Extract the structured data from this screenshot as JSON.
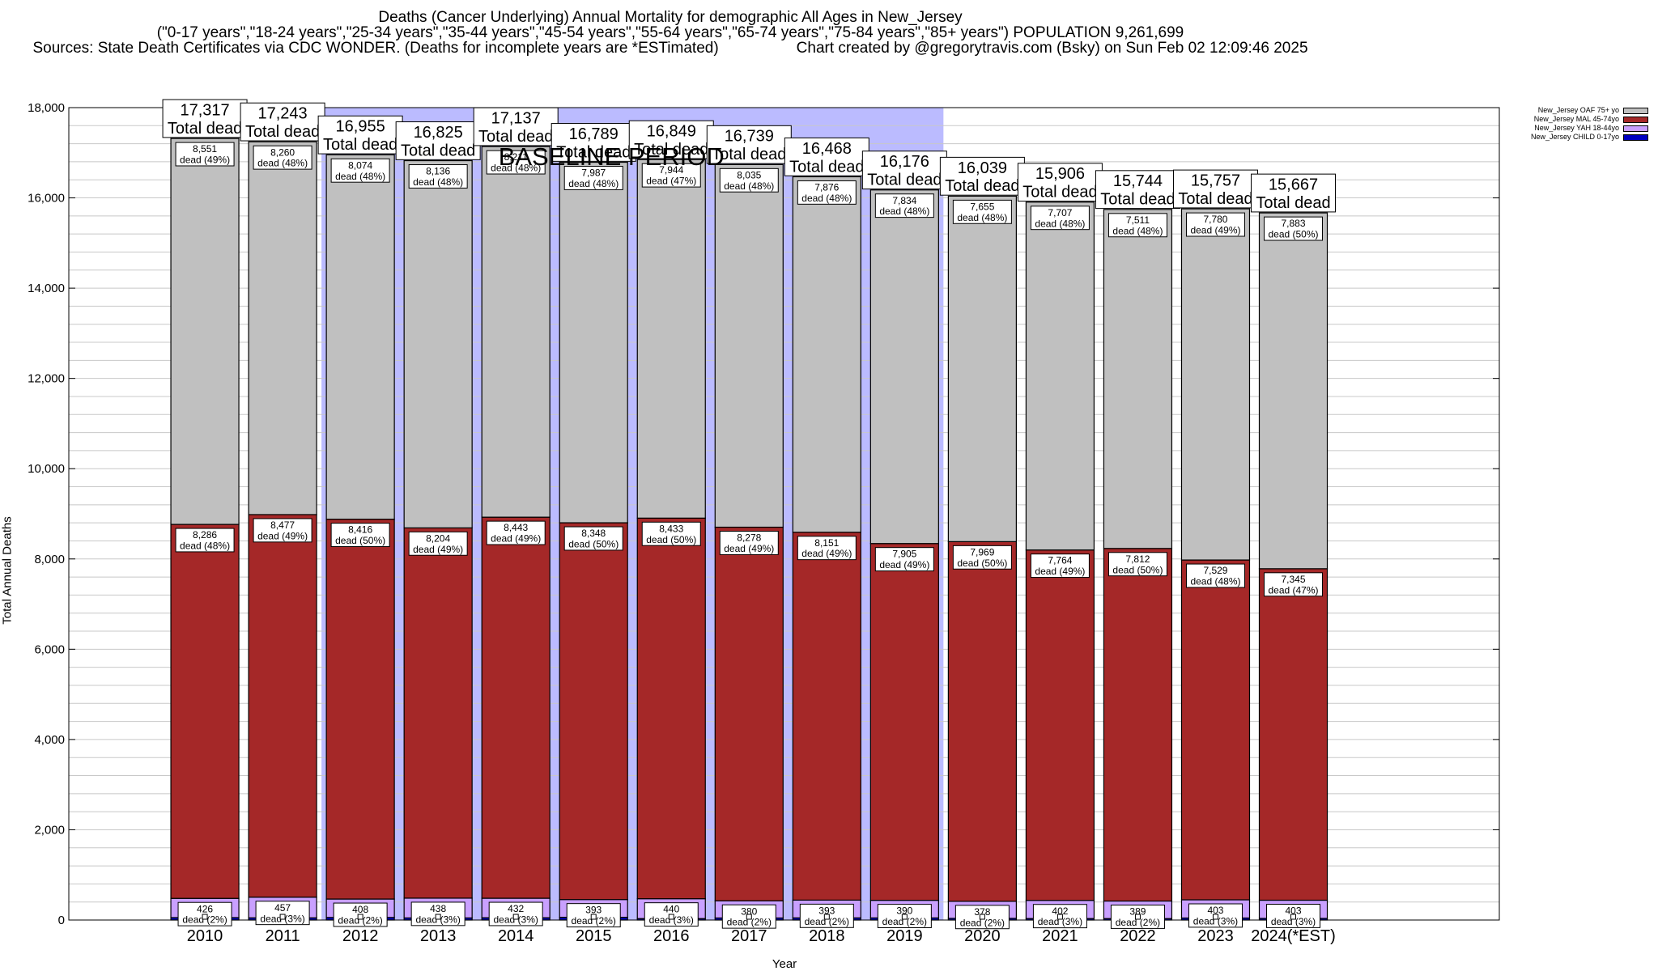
{
  "title": {
    "line1": "Deaths (Cancer Underlying) Annual Mortality for demographic All Ages in New_Jersey",
    "line2": "(\"0-17 years\",\"18-24 years\",\"25-34 years\",\"35-44 years\",\"45-54 years\",\"55-64 years\",\"65-74 years\",\"75-84 years\",\"85+ years\") POPULATION 9,261,699",
    "line3_left": "Sources: State Death Certificates via CDC WONDER. (Deaths for incomplete years are *ESTimated)",
    "line3_right": "Chart created by @gregorytravis.com (Bsky) on Sun Feb 02 12:09:46 2025"
  },
  "colors": {
    "oaf": "#c0c0c0",
    "mal": "#a52828",
    "yah": "#c9a0ff",
    "child": "#0000c0",
    "baseline": "#bbbbff",
    "grid": "#c8c8c8"
  },
  "chart_data": {
    "type": "bar",
    "stacked": true,
    "xlabel": "Year",
    "ylabel": "Total Annual Deaths",
    "ylim": [
      0,
      18000
    ],
    "yticks": [
      0,
      2000,
      4000,
      6000,
      8000,
      10000,
      12000,
      14000,
      16000,
      18000
    ],
    "ytick_labels": [
      "0",
      "2,000",
      "4,000",
      "6,000",
      "8,000",
      "10,000",
      "12,000",
      "14,000",
      "16,000",
      "18,000"
    ],
    "grid": true,
    "legend_position": "top-right",
    "categories": [
      "2010",
      "2011",
      "2012",
      "2013",
      "2014",
      "2015",
      "2016",
      "2017",
      "2018",
      "2019",
      "2020",
      "2021",
      "2022",
      "2023",
      "2024(*EST)"
    ],
    "series": [
      {
        "name": "New_Jersey CHILD 0-17yo",
        "color_key": "child",
        "values": [
          54,
          49,
          57,
          47,
          51,
          61,
          32,
          46,
          48,
          47,
          37,
          33,
          32,
          45,
          36
        ]
      },
      {
        "name": "New_Jersey YAH 18-44yo",
        "values": [
          426,
          457,
          408,
          438,
          432,
          393,
          440,
          380,
          393,
          390,
          378,
          402,
          389,
          403,
          403
        ],
        "labels": [
          "dead (2%)",
          "dead (3%)",
          "dead (2%)",
          "dead (3%)",
          "dead (3%)",
          "dead (2%)",
          "dead (3%)",
          "dead (2%)",
          "dead (2%)",
          "dead (2%)",
          "dead (2%)",
          "dead (3%)",
          "dead (2%)",
          "dead (3%)",
          "dead (3%)"
        ]
      },
      {
        "name": "New_Jersey MAL 45-74yo",
        "values": [
          8286,
          8477,
          8416,
          8204,
          8443,
          8348,
          8433,
          8278,
          8151,
          7905,
          7969,
          7764,
          7812,
          7529,
          7345
        ],
        "labels": [
          "dead (48%)",
          "dead (49%)",
          "dead (50%)",
          "dead (49%)",
          "dead (49%)",
          "dead (50%)",
          "dead (50%)",
          "dead (49%)",
          "dead (49%)",
          "dead (49%)",
          "dead (50%)",
          "dead (49%)",
          "dead (50%)",
          "dead (48%)",
          "dead (47%)"
        ]
      },
      {
        "name": "New_Jersey OAF 75+ yo",
        "values": [
          8551,
          8260,
          8074,
          8136,
          8211,
          7987,
          7944,
          8035,
          7876,
          7834,
          7655,
          7707,
          7511,
          7780,
          7883
        ],
        "labels": [
          "dead (49%)",
          "dead (48%)",
          "dead (48%)",
          "dead (48%)",
          "dead (48%)",
          "dead (48%)",
          "dead (47%)",
          "dead (48%)",
          "dead (48%)",
          "dead (48%)",
          "dead (48%)",
          "dead (48%)",
          "dead (48%)",
          "dead (49%)",
          "dead (50%)"
        ]
      }
    ],
    "totals": [
      17317,
      17243,
      16955,
      16825,
      17137,
      16789,
      16849,
      16739,
      16468,
      16176,
      16039,
      15906,
      15744,
      15757,
      15667
    ],
    "value_labels": {
      "yah": [
        "426",
        "457",
        "408",
        "438",
        "432",
        "393",
        "440",
        "380",
        "393",
        "390",
        "378",
        "402",
        "389",
        "403",
        "403"
      ],
      "mal": [
        "8,286",
        "8,477",
        "8,416",
        "8,204",
        "8,443",
        "8,348",
        "8,433",
        "8,278",
        "8,151",
        "7,905",
        "7,969",
        "7,764",
        "7,812",
        "7,529",
        "7,345"
      ],
      "oaf": [
        "8,551",
        "8,260",
        "8,074",
        "8,136",
        "8,211",
        "7,987",
        "7,944",
        "8,035",
        "7,876",
        "7,834",
        "7,655",
        "7,707",
        "7,511",
        "7,780",
        "7,883"
      ],
      "totals": [
        "17,317",
        "17,243",
        "16,955",
        "16,825",
        "17,137",
        "16,789",
        "16,849",
        "16,739",
        "16,468",
        "16,176",
        "16,039",
        "15,906",
        "15,744",
        "15,757",
        "15,667"
      ]
    },
    "total_caption": "Total dead",
    "baseline": {
      "label": "BASELINE PERIOD",
      "from": "2012",
      "to": "2019"
    },
    "legend": [
      {
        "label": "New_Jersey OAF 75+ yo",
        "color_key": "oaf"
      },
      {
        "label": "New_Jersey MAL 45-74yo",
        "color_key": "mal"
      },
      {
        "label": "New_Jersey YAH 18-44yo",
        "color_key": "yah"
      },
      {
        "label": "New_Jersey CHILD 0-17yo",
        "color_key": "child"
      }
    ]
  }
}
